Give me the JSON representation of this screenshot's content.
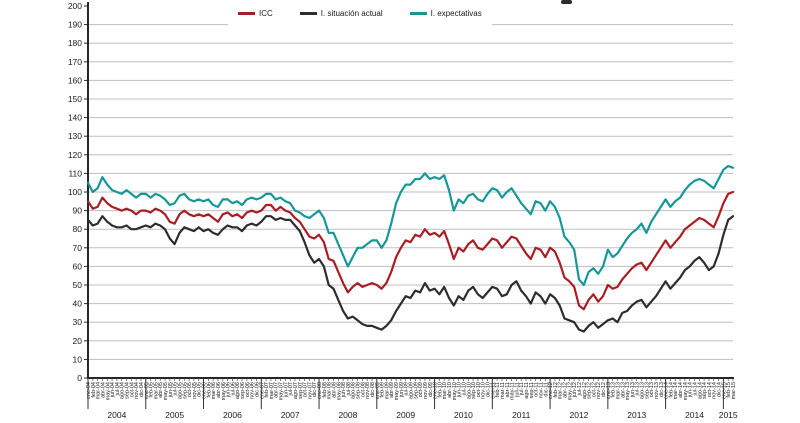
{
  "chart_data": {
    "type": "line",
    "title": "",
    "legend_position": "top",
    "grid": true,
    "ylim": [
      0,
      200
    ],
    "y_ticks": [
      0,
      10,
      20,
      30,
      40,
      50,
      60,
      70,
      80,
      90,
      100,
      110,
      120,
      130,
      140,
      150,
      160,
      170,
      180,
      190,
      200
    ],
    "x_year_labels": [
      "2004",
      "2005",
      "2006",
      "2007",
      "2008",
      "2009",
      "2010",
      "2011",
      "2012",
      "2013",
      "2014",
      "2015"
    ],
    "x_month_labels": [
      "ene-04",
      "feb-04",
      "mar-04",
      "abr-04",
      "may-04",
      "jun-04",
      "jul-04",
      "ago-04",
      "sep-04",
      "oct-04",
      "nov-04",
      "dic-04",
      "ene-05",
      "feb-05",
      "mar-05",
      "abr-05",
      "may-05",
      "jun-05",
      "jul-05",
      "ago-05",
      "sep-05",
      "oct-05",
      "nov-05",
      "dic-05",
      "ene-06",
      "feb-06",
      "mar-06",
      "abr-06",
      "may-06",
      "jun-06",
      "jul-06",
      "ago-06",
      "sep-06",
      "oct-06",
      "nov-06",
      "dic-06",
      "ene-07",
      "feb-07",
      "mar-07",
      "abr-07",
      "may-07",
      "jun-07",
      "jul-07",
      "ago-07",
      "sep-07",
      "oct-07",
      "nov-07",
      "dic-07",
      "ene-08",
      "feb-08",
      "mar-08",
      "abr-08",
      "may-08",
      "jun-08",
      "jul-08",
      "ago-08",
      "sep-08",
      "oct-08",
      "nov-08",
      "dic-08",
      "ene-09",
      "feb-09",
      "mar-09",
      "abr-09",
      "may-09",
      "jun-09",
      "jul-09",
      "ago-09",
      "sep-09",
      "oct-09",
      "nov-09",
      "dic-09",
      "ene-10",
      "feb-10",
      "mar-10",
      "abr-10",
      "may-10",
      "jun-10",
      "jul-10",
      "ago-10",
      "sep-10",
      "oct-10",
      "nov-10",
      "dic-10",
      "ene-11",
      "feb-11",
      "mar-11",
      "abr-11",
      "may-11",
      "jun-11",
      "jul-11",
      "ago-11",
      "sep-11",
      "oct-11",
      "nov-11",
      "dic-11",
      "ene-12",
      "feb-12",
      "mar-12",
      "abr-12",
      "may-12",
      "jun-12",
      "jul-12",
      "ago-12",
      "sep-12",
      "oct-12",
      "nov-12",
      "dic-12",
      "ene-13",
      "feb-13",
      "mar-13",
      "abr-13",
      "may-13",
      "jun-13",
      "jul-13",
      "ago-13",
      "sep-13",
      "oct-13",
      "nov-13",
      "dic-13",
      "ene-14",
      "feb-14",
      "mar-14",
      "abr-14",
      "may-14",
      "jun-14",
      "jul-14",
      "ago-14",
      "sep-14",
      "oct-14",
      "nov-14",
      "dic-14",
      "ene-15",
      "feb-15",
      "mar-15"
    ],
    "series": [
      {
        "name": "ICC",
        "color": "#a81e24",
        "values": [
          95,
          91,
          92,
          97,
          94,
          92,
          91,
          90,
          91,
          90,
          88,
          90,
          90,
          89,
          91,
          90,
          88,
          84,
          83,
          88,
          90,
          88,
          87,
          88,
          87,
          88,
          86,
          84,
          88,
          89,
          87,
          88,
          86,
          89,
          90,
          89,
          90,
          93,
          93,
          90,
          92,
          90,
          89,
          86,
          84,
          80,
          76,
          75,
          77,
          73,
          64,
          63,
          57,
          51,
          46,
          49,
          51,
          49,
          50,
          51,
          50,
          48,
          51,
          57,
          65,
          70,
          74,
          73,
          77,
          76,
          80,
          77,
          78,
          76,
          79,
          72,
          64,
          70,
          68,
          72,
          74,
          70,
          69,
          72,
          75,
          74,
          70,
          73,
          76,
          75,
          71,
          67,
          64,
          70,
          69,
          65,
          70,
          68,
          62,
          54,
          52,
          49,
          39,
          37,
          42,
          45,
          41,
          44,
          50,
          48,
          49,
          53,
          56,
          59,
          61,
          62,
          58,
          62,
          66,
          70,
          74,
          70,
          73,
          76,
          80,
          82,
          84,
          86,
          85,
          83,
          81,
          87,
          94,
          99,
          100
        ]
      },
      {
        "name": "I. situación actual",
        "color": "#2d2d2d",
        "values": [
          85,
          82,
          83,
          87,
          84,
          82,
          81,
          81,
          82,
          80,
          80,
          81,
          82,
          81,
          83,
          82,
          80,
          75,
          72,
          78,
          81,
          80,
          79,
          81,
          79,
          80,
          78,
          77,
          80,
          82,
          81,
          81,
          79,
          82,
          83,
          82,
          84,
          87,
          87,
          85,
          86,
          85,
          85,
          82,
          79,
          73,
          66,
          62,
          64,
          60,
          50,
          48,
          42,
          36,
          32,
          33,
          31,
          29,
          28,
          28,
          27,
          26,
          28,
          31,
          36,
          40,
          44,
          43,
          47,
          46,
          51,
          47,
          48,
          45,
          49,
          43,
          39,
          44,
          42,
          47,
          49,
          45,
          43,
          46,
          49,
          48,
          44,
          45,
          50,
          52,
          47,
          44,
          40,
          46,
          44,
          40,
          45,
          43,
          39,
          32,
          31,
          30,
          26,
          25,
          28,
          30,
          27,
          29,
          31,
          32,
          30,
          35,
          36,
          39,
          41,
          42,
          38,
          41,
          44,
          48,
          52,
          48,
          51,
          54,
          58,
          60,
          63,
          65,
          62,
          58,
          60,
          67,
          77,
          85,
          87
        ]
      },
      {
        "name": "I. expectativas",
        "color": "#16989a",
        "values": [
          105,
          100,
          102,
          108,
          104,
          101,
          100,
          99,
          101,
          99,
          97,
          99,
          99,
          97,
          99,
          98,
          96,
          93,
          94,
          98,
          99,
          96,
          95,
          96,
          95,
          96,
          93,
          92,
          96,
          96,
          94,
          95,
          93,
          96,
          97,
          96,
          97,
          99,
          99,
          96,
          97,
          95,
          94,
          90,
          89,
          87,
          86,
          88,
          90,
          86,
          78,
          78,
          72,
          66,
          60,
          65,
          70,
          70,
          72,
          74,
          74,
          70,
          74,
          83,
          94,
          100,
          104,
          104,
          107,
          107,
          110,
          107,
          108,
          107,
          109,
          101,
          90,
          96,
          94,
          98,
          99,
          96,
          95,
          99,
          102,
          101,
          97,
          100,
          102,
          98,
          94,
          91,
          88,
          95,
          94,
          90,
          95,
          92,
          86,
          76,
          73,
          69,
          53,
          50,
          57,
          59,
          56,
          60,
          69,
          65,
          67,
          71,
          75,
          78,
          80,
          83,
          78,
          84,
          88,
          92,
          96,
          92,
          95,
          97,
          101,
          104,
          106,
          107,
          106,
          104,
          102,
          107,
          112,
          114,
          113
        ]
      }
    ],
    "colors": {
      "gridline": "#bfbfbf",
      "axis": "#262626",
      "tick_text": "#1a1a1a"
    }
  }
}
